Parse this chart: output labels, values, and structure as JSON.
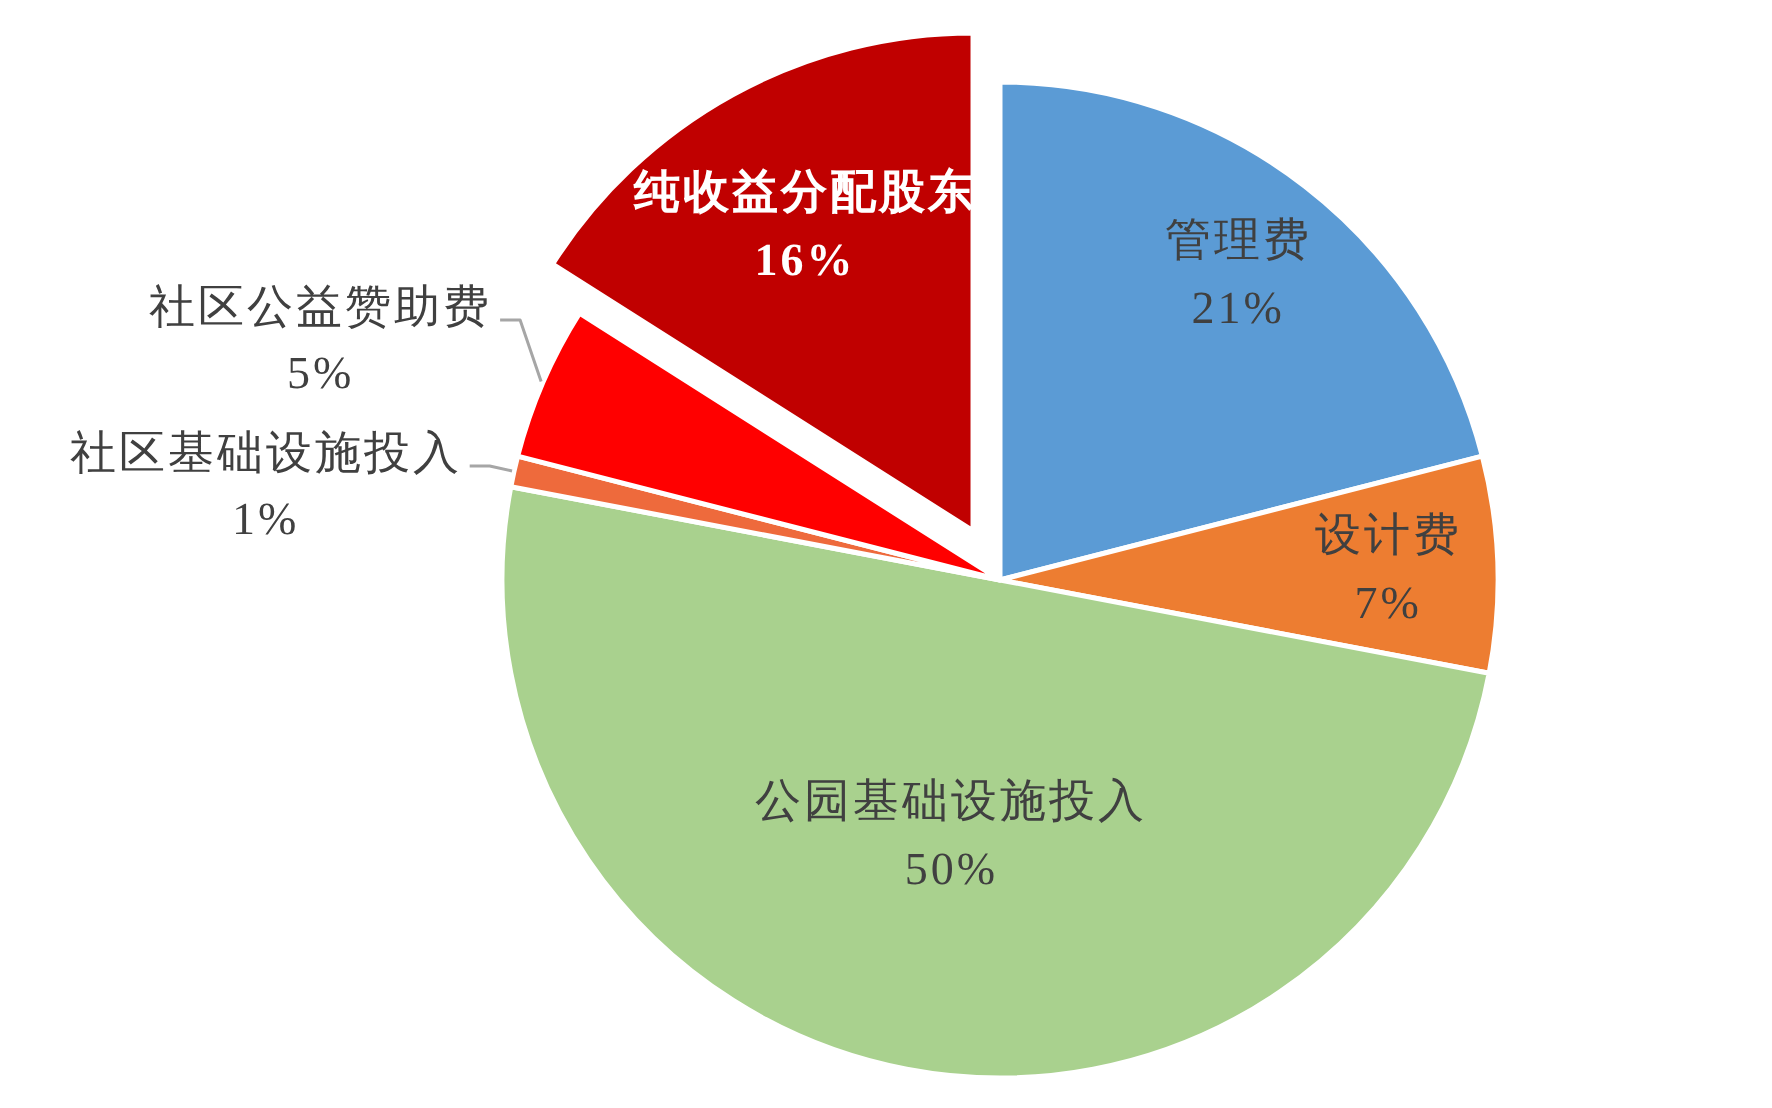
{
  "chart_data": {
    "type": "pie",
    "categories": [
      "管理费",
      "设计费",
      "公园基础设施投入",
      "社区基础设施投入",
      "社区公益赞助费",
      "纯收益分配股东"
    ],
    "values": [
      21,
      7,
      50,
      1,
      5,
      16
    ],
    "colors": [
      "#5b9bd5",
      "#ed7d31",
      "#a9d18e",
      "#ee6a3c",
      "#ff0000",
      "#c00000"
    ],
    "value_labels": [
      "21%",
      "7%",
      "50%",
      "1%",
      "5%",
      "16%"
    ]
  }
}
